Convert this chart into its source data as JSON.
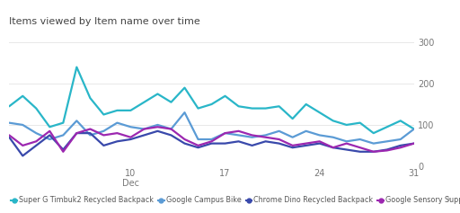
{
  "title": "Items viewed by Item name over time",
  "background_color": "#ffffff",
  "grid_color": "#e8e8e8",
  "ylim": [
    0,
    320
  ],
  "yticks": [
    0,
    100,
    200,
    300
  ],
  "xlim": [
    1,
    31
  ],
  "x_tick_positions": [
    10,
    17,
    24,
    31
  ],
  "x_tick_labels": [
    "10\nDec",
    "17",
    "24",
    "31"
  ],
  "series": [
    {
      "name": "Super G Timbuk2 Recycled Backpack",
      "color": "#29b6c8",
      "linewidth": 1.6,
      "values": [
        145,
        170,
        140,
        95,
        105,
        240,
        165,
        125,
        135,
        135,
        155,
        175,
        155,
        190,
        140,
        150,
        170,
        145,
        140,
        140,
        145,
        115,
        150,
        130,
        110,
        100,
        105,
        80,
        95,
        110,
        90
      ]
    },
    {
      "name": "Google Campus Bike",
      "color": "#5b9bd5",
      "linewidth": 1.6,
      "values": [
        105,
        100,
        80,
        65,
        75,
        110,
        75,
        85,
        105,
        95,
        90,
        100,
        90,
        130,
        65,
        65,
        80,
        75,
        70,
        75,
        85,
        70,
        85,
        75,
        70,
        60,
        65,
        55,
        60,
        65,
        90
      ]
    },
    {
      "name": "Chrome Dino Recycled Backpack",
      "color": "#3949ab",
      "linewidth": 1.6,
      "values": [
        70,
        25,
        50,
        75,
        40,
        80,
        80,
        50,
        60,
        65,
        75,
        85,
        75,
        55,
        45,
        55,
        55,
        60,
        50,
        60,
        55,
        45,
        50,
        55,
        45,
        40,
        35,
        35,
        40,
        50,
        55
      ]
    },
    {
      "name": "Google Sensory Support Event Ki",
      "color": "#9c27b0",
      "linewidth": 1.6,
      "values": [
        75,
        50,
        60,
        85,
        35,
        80,
        90,
        75,
        80,
        70,
        90,
        95,
        90,
        65,
        50,
        60,
        80,
        85,
        75,
        70,
        65,
        50,
        55,
        60,
        45,
        55,
        45,
        35,
        38,
        45,
        55
      ]
    }
  ],
  "legend": [
    {
      "label": "Super G Timbuk2 Recycled Backpack",
      "color": "#29b6c8"
    },
    {
      "label": "Google Campus Bike",
      "color": "#5b9bd5"
    },
    {
      "label": "Chrome Dino Recycled Backpack",
      "color": "#3949ab"
    },
    {
      "label": "Google Sensory Support Event Ki",
      "color": "#9c27b0"
    }
  ]
}
